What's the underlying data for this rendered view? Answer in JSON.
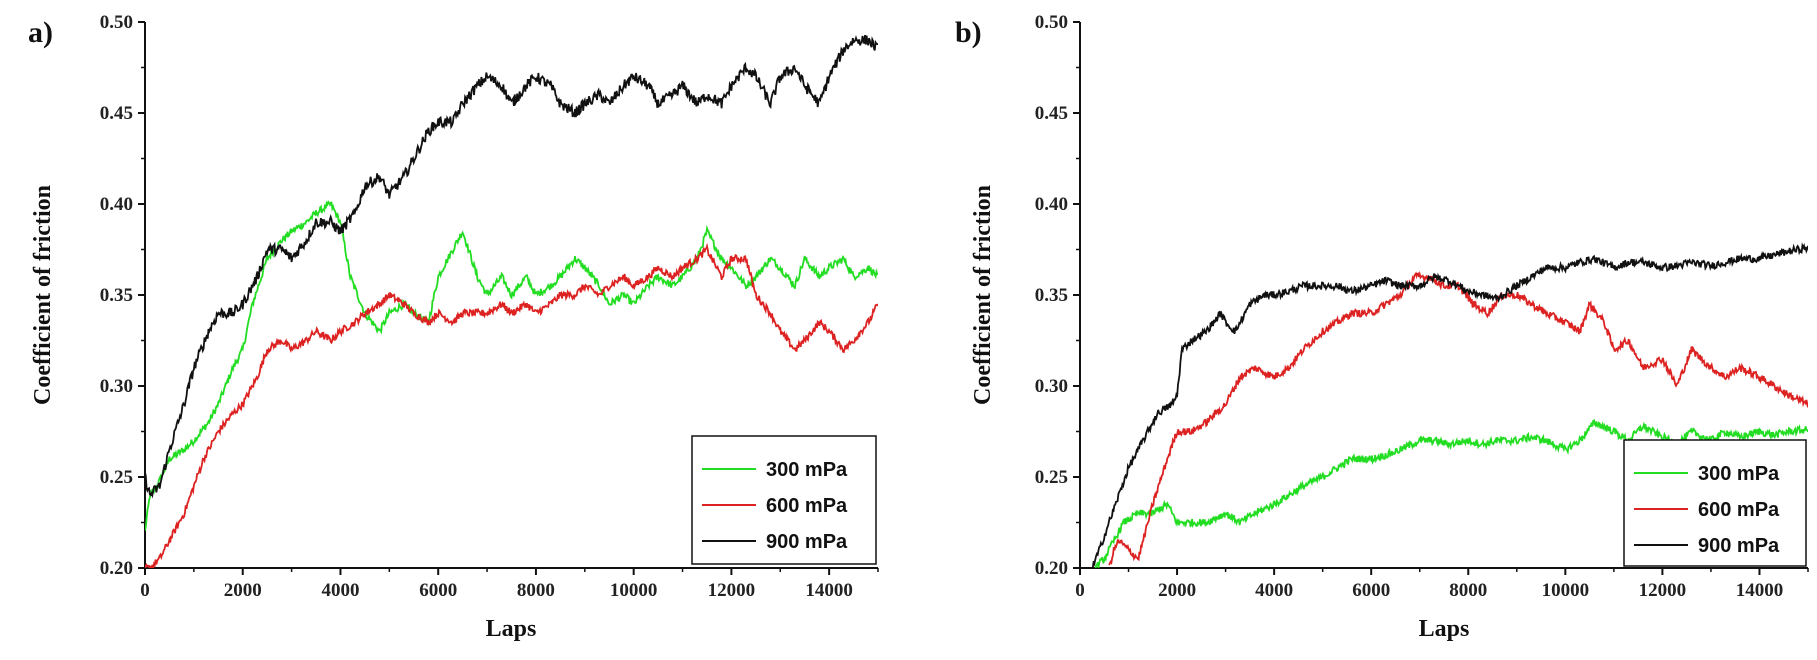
{
  "chart_data": [
    {
      "type": "line",
      "panel_label": "a)",
      "xlabel": "Laps",
      "ylabel": "Coefficient of friction",
      "xlim": [
        0,
        15000
      ],
      "ylim": [
        0.2,
        0.5
      ],
      "xticks": [
        0,
        2000,
        4000,
        6000,
        8000,
        10000,
        12000,
        14000
      ],
      "xtick_labels": [
        "0",
        "2000",
        "4000",
        "6000",
        "8000",
        "10000",
        "12000",
        "14000"
      ],
      "yticks": [
        0.2,
        0.25,
        0.3,
        0.35,
        0.4,
        0.45,
        0.5
      ],
      "ytick_labels": [
        "0.20",
        "0.25",
        "0.30",
        "0.35",
        "0.40",
        "0.45",
        "0.50"
      ],
      "legend_position": "bottom-right",
      "series": [
        {
          "name": "300 mPa",
          "color": "#22dd22",
          "x": [
            0,
            100,
            250,
            500,
            800,
            1000,
            1300,
            1500,
            1800,
            2000,
            2200,
            2500,
            2800,
            3000,
            3300,
            3500,
            3800,
            4000,
            4200,
            4500,
            4800,
            5000,
            5300,
            5500,
            5800,
            6000,
            6200,
            6500,
            6800,
            7000,
            7300,
            7500,
            7800,
            8000,
            8300,
            8500,
            8800,
            9000,
            9300,
            9500,
            9800,
            10000,
            10300,
            10500,
            10800,
            11000,
            11300,
            11500,
            11800,
            12000,
            12300,
            12500,
            12800,
            13000,
            13300,
            13500,
            13800,
            14000,
            14300,
            14500,
            14800,
            15000
          ],
          "y": [
            0.22,
            0.24,
            0.245,
            0.26,
            0.265,
            0.27,
            0.28,
            0.29,
            0.31,
            0.32,
            0.345,
            0.37,
            0.38,
            0.385,
            0.39,
            0.395,
            0.4,
            0.39,
            0.36,
            0.34,
            0.33,
            0.34,
            0.345,
            0.34,
            0.335,
            0.36,
            0.37,
            0.385,
            0.36,
            0.35,
            0.36,
            0.35,
            0.36,
            0.35,
            0.355,
            0.36,
            0.37,
            0.365,
            0.355,
            0.345,
            0.35,
            0.345,
            0.355,
            0.36,
            0.355,
            0.36,
            0.37,
            0.385,
            0.37,
            0.365,
            0.355,
            0.36,
            0.37,
            0.365,
            0.355,
            0.37,
            0.36,
            0.365,
            0.37,
            0.36,
            0.365,
            0.36
          ]
        },
        {
          "name": "600 mPa",
          "color": "#dd2222",
          "x": [
            0,
            100,
            300,
            500,
            800,
            1000,
            1200,
            1500,
            1800,
            2000,
            2300,
            2500,
            2800,
            3000,
            3300,
            3500,
            3800,
            4000,
            4300,
            4500,
            4800,
            5000,
            5300,
            5500,
            5800,
            6000,
            6300,
            6500,
            6800,
            7000,
            7300,
            7500,
            7800,
            8000,
            8300,
            8500,
            8800,
            9000,
            9300,
            9500,
            9800,
            10000,
            10300,
            10500,
            10800,
            11000,
            11300,
            11500,
            11800,
            12000,
            12300,
            12500,
            12800,
            13000,
            13300,
            13500,
            13800,
            14000,
            14300,
            14500,
            14800,
            15000
          ],
          "y": [
            0.2,
            0.2,
            0.205,
            0.215,
            0.23,
            0.245,
            0.26,
            0.275,
            0.285,
            0.29,
            0.305,
            0.32,
            0.325,
            0.32,
            0.325,
            0.33,
            0.325,
            0.33,
            0.335,
            0.34,
            0.345,
            0.35,
            0.345,
            0.34,
            0.335,
            0.34,
            0.335,
            0.34,
            0.34,
            0.34,
            0.345,
            0.34,
            0.345,
            0.34,
            0.345,
            0.35,
            0.35,
            0.355,
            0.35,
            0.355,
            0.36,
            0.355,
            0.36,
            0.365,
            0.36,
            0.365,
            0.37,
            0.375,
            0.36,
            0.37,
            0.37,
            0.35,
            0.34,
            0.33,
            0.32,
            0.325,
            0.335,
            0.33,
            0.32,
            0.325,
            0.335,
            0.345
          ]
        },
        {
          "name": "900 mPa",
          "color": "#111111",
          "x": [
            0,
            100,
            300,
            500,
            800,
            1000,
            1300,
            1500,
            1800,
            2000,
            2300,
            2500,
            2800,
            3000,
            3300,
            3500,
            3800,
            4000,
            4300,
            4500,
            4800,
            5000,
            5300,
            5500,
            5800,
            6000,
            6300,
            6500,
            6800,
            7000,
            7300,
            7500,
            7800,
            8000,
            8300,
            8500,
            8800,
            9000,
            9300,
            9500,
            9800,
            10000,
            10300,
            10500,
            10800,
            11000,
            11300,
            11500,
            11800,
            12000,
            12300,
            12500,
            12800,
            13000,
            13300,
            13500,
            13800,
            14000,
            14300,
            14500,
            14800,
            15000
          ],
          "y": [
            0.25,
            0.24,
            0.245,
            0.265,
            0.29,
            0.31,
            0.33,
            0.34,
            0.34,
            0.345,
            0.36,
            0.375,
            0.375,
            0.37,
            0.38,
            0.39,
            0.39,
            0.385,
            0.395,
            0.41,
            0.415,
            0.405,
            0.415,
            0.425,
            0.44,
            0.445,
            0.445,
            0.455,
            0.465,
            0.47,
            0.465,
            0.455,
            0.465,
            0.47,
            0.465,
            0.455,
            0.45,
            0.455,
            0.46,
            0.455,
            0.465,
            0.47,
            0.465,
            0.455,
            0.46,
            0.465,
            0.455,
            0.46,
            0.455,
            0.465,
            0.475,
            0.47,
            0.455,
            0.47,
            0.475,
            0.465,
            0.455,
            0.47,
            0.485,
            0.49,
            0.49,
            0.485
          ]
        }
      ]
    },
    {
      "type": "line",
      "panel_label": "b)",
      "xlabel": "Laps",
      "ylabel": "Coefficient of friction",
      "xlim": [
        0,
        15000
      ],
      "ylim": [
        0.2,
        0.5
      ],
      "xticks": [
        0,
        2000,
        4000,
        6000,
        8000,
        10000,
        12000,
        14000
      ],
      "xtick_labels": [
        "0",
        "2000",
        "4000",
        "6000",
        "8000",
        "10000",
        "12000",
        "14000"
      ],
      "yticks": [
        0.2,
        0.25,
        0.3,
        0.35,
        0.4,
        0.45,
        0.5
      ],
      "ytick_labels": [
        "0.20",
        "0.25",
        "0.30",
        "0.35",
        "0.40",
        "0.45",
        "0.50"
      ],
      "legend_position": "bottom-right",
      "series": [
        {
          "name": "300 mPa",
          "color": "#22dd22",
          "x": [
            300,
            500,
            700,
            900,
            1200,
            1500,
            1800,
            2000,
            2300,
            2600,
            3000,
            3300,
            3600,
            4000,
            4300,
            4600,
            5000,
            5300,
            5600,
            6000,
            6300,
            6600,
            7000,
            7300,
            7600,
            8000,
            8300,
            8600,
            9000,
            9300,
            9600,
            10000,
            10300,
            10600,
            11000,
            11300,
            11600,
            12000,
            12300,
            12600,
            13000,
            13300,
            13600,
            14000,
            14300,
            14600,
            15000
          ],
          "y": [
            0.2,
            0.205,
            0.215,
            0.225,
            0.23,
            0.23,
            0.235,
            0.225,
            0.225,
            0.225,
            0.23,
            0.225,
            0.23,
            0.235,
            0.24,
            0.245,
            0.25,
            0.255,
            0.26,
            0.26,
            0.262,
            0.265,
            0.27,
            0.27,
            0.268,
            0.27,
            0.268,
            0.27,
            0.27,
            0.272,
            0.27,
            0.265,
            0.27,
            0.28,
            0.275,
            0.27,
            0.278,
            0.272,
            0.268,
            0.275,
            0.27,
            0.275,
            0.272,
            0.275,
            0.273,
            0.275,
            0.276
          ]
        },
        {
          "name": "600 mPa",
          "color": "#dd2222",
          "x": [
            600,
            700,
            800,
            1000,
            1200,
            1500,
            1800,
            2000,
            2300,
            2600,
            3000,
            3300,
            3600,
            4000,
            4300,
            4600,
            5000,
            5300,
            5600,
            6000,
            6300,
            6600,
            6900,
            7200,
            7500,
            7800,
            8100,
            8400,
            8700,
            9000,
            9300,
            9600,
            10000,
            10300,
            10500,
            10800,
            11000,
            11300,
            11600,
            12000,
            12300,
            12600,
            13000,
            13300,
            13600,
            14000,
            14300,
            14600,
            15000
          ],
          "y": [
            0.2,
            0.21,
            0.215,
            0.21,
            0.205,
            0.235,
            0.26,
            0.275,
            0.275,
            0.28,
            0.29,
            0.305,
            0.31,
            0.305,
            0.31,
            0.32,
            0.33,
            0.335,
            0.34,
            0.34,
            0.345,
            0.35,
            0.36,
            0.36,
            0.355,
            0.355,
            0.345,
            0.34,
            0.35,
            0.35,
            0.345,
            0.34,
            0.335,
            0.33,
            0.345,
            0.335,
            0.32,
            0.325,
            0.31,
            0.315,
            0.3,
            0.32,
            0.31,
            0.305,
            0.31,
            0.305,
            0.3,
            0.295,
            0.29
          ]
        },
        {
          "name": "900 mPa",
          "color": "#111111",
          "x": [
            250,
            400,
            600,
            800,
            1000,
            1300,
            1600,
            1900,
            2000,
            2100,
            2300,
            2600,
            2900,
            3000,
            3200,
            3500,
            3800,
            4000,
            4300,
            4600,
            5000,
            5300,
            5600,
            6000,
            6300,
            6600,
            7000,
            7300,
            7600,
            8000,
            8300,
            8600,
            9000,
            9300,
            9600,
            10000,
            10300,
            10600,
            11000,
            11300,
            11600,
            12000,
            12300,
            12600,
            13000,
            13300,
            13600,
            14000,
            14300,
            14600,
            15000
          ],
          "y": [
            0.2,
            0.21,
            0.225,
            0.24,
            0.255,
            0.27,
            0.285,
            0.29,
            0.295,
            0.32,
            0.325,
            0.33,
            0.34,
            0.335,
            0.33,
            0.345,
            0.35,
            0.35,
            0.352,
            0.355,
            0.355,
            0.355,
            0.352,
            0.355,
            0.358,
            0.355,
            0.355,
            0.36,
            0.358,
            0.352,
            0.35,
            0.348,
            0.355,
            0.36,
            0.365,
            0.365,
            0.368,
            0.37,
            0.365,
            0.368,
            0.368,
            0.365,
            0.366,
            0.368,
            0.366,
            0.368,
            0.37,
            0.37,
            0.372,
            0.374,
            0.376
          ]
        }
      ]
    }
  ]
}
